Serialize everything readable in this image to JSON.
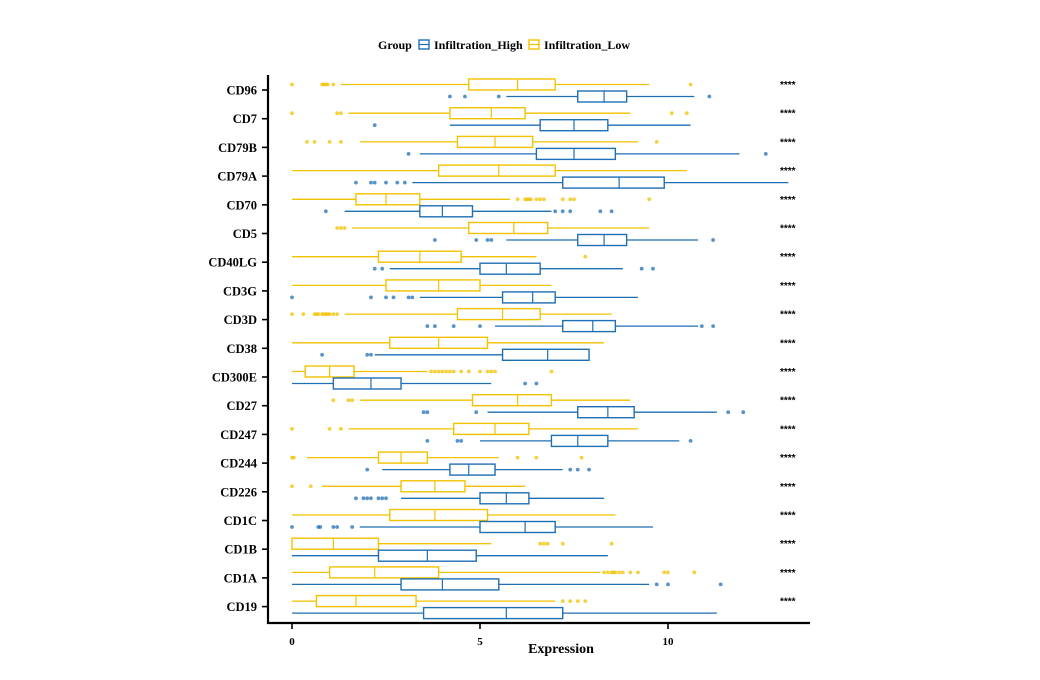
{
  "chart_data": {
    "type": "boxplot",
    "orientation": "horizontal",
    "xlabel": "Expression",
    "xlim": [
      -1.2,
      13.8
    ],
    "xticks": [
      0,
      5,
      10
    ],
    "legend": {
      "title": "Group",
      "position": "top",
      "entries": [
        {
          "name": "Infiltration_High",
          "color": "#1f6fb5"
        },
        {
          "name": "Infiltration_Low",
          "color": "#f2c200"
        }
      ]
    },
    "categories": [
      "CD96",
      "CD7",
      "CD79B",
      "CD79A",
      "CD70",
      "CD5",
      "CD40LG",
      "CD3G",
      "CD3D",
      "CD38",
      "CD300E",
      "CD27",
      "CD247",
      "CD244",
      "CD226",
      "CD1C",
      "CD1B",
      "CD1A",
      "CD19"
    ],
    "significance": [
      "****",
      "****",
      "****",
      "****",
      "****",
      "****",
      "****",
      "****",
      "****",
      "****",
      "****",
      "****",
      "****",
      "****",
      "****",
      "****",
      "****",
      "****",
      "****"
    ],
    "series": [
      {
        "name": "Infiltration_Low",
        "color": "#f2c200",
        "boxes": [
          {
            "min": 1.3,
            "q1": 4.7,
            "median": 6.0,
            "q3": 7.0,
            "max": 9.5,
            "outliers": [
              0.0,
              0.8,
              0.85,
              0.9,
              0.95,
              1.1,
              10.6
            ]
          },
          {
            "min": 1.5,
            "q1": 4.2,
            "median": 5.3,
            "q3": 6.2,
            "max": 9.0,
            "outliers": [
              0.0,
              1.2,
              1.3,
              10.1,
              10.5
            ]
          },
          {
            "min": 1.8,
            "q1": 4.4,
            "median": 5.4,
            "q3": 6.4,
            "max": 9.2,
            "outliers": [
              0.4,
              0.6,
              1.0,
              1.3,
              9.7
            ]
          },
          {
            "min": 0.0,
            "q1": 3.9,
            "median": 5.5,
            "q3": 7.0,
            "max": 10.5,
            "outliers": []
          },
          {
            "min": 0.0,
            "q1": 1.7,
            "median": 2.5,
            "q3": 3.4,
            "max": 5.8,
            "outliers": [
              6.0,
              6.2,
              6.25,
              6.3,
              6.35,
              6.5,
              6.6,
              6.7,
              7.2,
              7.4,
              7.5,
              9.5
            ]
          },
          {
            "min": 1.6,
            "q1": 4.7,
            "median": 5.9,
            "q3": 6.8,
            "max": 9.5,
            "outliers": [
              1.2,
              1.3,
              1.4
            ]
          },
          {
            "min": 0.0,
            "q1": 2.3,
            "median": 3.4,
            "q3": 4.5,
            "max": 6.5,
            "outliers": [
              7.8
            ]
          },
          {
            "min": 0.0,
            "q1": 2.5,
            "median": 3.9,
            "q3": 5.0,
            "max": 6.9,
            "outliers": []
          },
          {
            "min": 1.4,
            "q1": 4.4,
            "median": 5.6,
            "q3": 6.6,
            "max": 8.5,
            "outliers": [
              0.0,
              0.3,
              0.6,
              0.65,
              0.7,
              0.8,
              0.85,
              0.9,
              0.95,
              1.0,
              1.1,
              1.2
            ]
          },
          {
            "min": 0.0,
            "q1": 2.6,
            "median": 3.9,
            "q3": 5.2,
            "max": 8.3,
            "outliers": []
          },
          {
            "min": 0.0,
            "q1": 0.35,
            "median": 1.0,
            "q3": 1.65,
            "max": 3.6,
            "outliers": [
              3.7,
              3.8,
              3.9,
              4.0,
              4.1,
              4.2,
              4.3,
              4.5,
              4.7,
              5.0,
              5.2,
              5.3,
              5.4,
              6.9
            ]
          },
          {
            "min": 1.8,
            "q1": 4.8,
            "median": 6.0,
            "q3": 6.9,
            "max": 9.0,
            "outliers": [
              1.1,
              1.5,
              1.6
            ]
          },
          {
            "min": 1.5,
            "q1": 4.3,
            "median": 5.4,
            "q3": 6.3,
            "max": 9.2,
            "outliers": [
              0.0,
              1.0,
              1.3
            ]
          },
          {
            "min": 0.4,
            "q1": 2.3,
            "median": 2.9,
            "q3": 3.6,
            "max": 5.5,
            "outliers": [
              0.0,
              0.05,
              6.0,
              6.5,
              7.7
            ]
          },
          {
            "min": 0.8,
            "q1": 2.9,
            "median": 3.8,
            "q3": 4.6,
            "max": 6.2,
            "outliers": [
              0.0,
              0.5
            ]
          },
          {
            "min": 0.0,
            "q1": 2.6,
            "median": 3.8,
            "q3": 5.2,
            "max": 8.6,
            "outliers": []
          },
          {
            "min": 0.0,
            "q1": 0.0,
            "median": 1.1,
            "q3": 2.3,
            "max": 5.3,
            "outliers": [
              6.6,
              6.7,
              6.8,
              7.2,
              8.5
            ]
          },
          {
            "min": 0.0,
            "q1": 1.0,
            "median": 2.2,
            "q3": 3.9,
            "max": 8.2,
            "outliers": [
              8.3,
              8.4,
              8.5,
              8.55,
              8.6,
              8.7,
              8.8,
              9.0,
              9.2,
              9.9,
              10.0,
              10.7
            ]
          },
          {
            "min": 0.0,
            "q1": 0.65,
            "median": 1.7,
            "q3": 3.3,
            "max": 7.0,
            "outliers": [
              7.2,
              7.4,
              7.6,
              7.8
            ]
          }
        ]
      },
      {
        "name": "Infiltration_High",
        "color": "#1f6fb5",
        "boxes": [
          {
            "min": 5.7,
            "q1": 7.6,
            "median": 8.3,
            "q3": 8.9,
            "max": 10.7,
            "outliers": [
              4.2,
              4.6,
              5.5,
              11.1
            ]
          },
          {
            "min": 4.2,
            "q1": 6.6,
            "median": 7.5,
            "q3": 8.4,
            "max": 10.6,
            "outliers": [
              2.2
            ]
          },
          {
            "min": 3.4,
            "q1": 6.5,
            "median": 7.5,
            "q3": 8.6,
            "max": 11.9,
            "outliers": [
              3.1,
              12.6
            ]
          },
          {
            "min": 3.2,
            "q1": 7.2,
            "median": 8.7,
            "q3": 9.9,
            "max": 13.2,
            "outliers": [
              1.7,
              2.1,
              2.2,
              2.5,
              2.8,
              3.0
            ]
          },
          {
            "min": 1.4,
            "q1": 3.4,
            "median": 4.0,
            "q3": 4.8,
            "max": 6.9,
            "outliers": [
              0.9,
              7.0,
              7.2,
              7.4,
              8.2,
              8.5
            ]
          },
          {
            "min": 5.7,
            "q1": 7.6,
            "median": 8.3,
            "q3": 8.9,
            "max": 10.8,
            "outliers": [
              3.8,
              4.9,
              5.2,
              5.3,
              11.2
            ]
          },
          {
            "min": 2.6,
            "q1": 5.0,
            "median": 5.7,
            "q3": 6.6,
            "max": 8.8,
            "outliers": [
              2.2,
              2.4,
              9.3,
              9.6
            ]
          },
          {
            "min": 3.4,
            "q1": 5.6,
            "median": 6.4,
            "q3": 7.0,
            "max": 9.2,
            "outliers": [
              0.0,
              2.1,
              2.5,
              2.7,
              3.1,
              3.2
            ]
          },
          {
            "min": 5.4,
            "q1": 7.2,
            "median": 8.0,
            "q3": 8.6,
            "max": 10.8,
            "outliers": [
              3.6,
              3.8,
              4.3,
              5.0,
              10.9,
              11.2
            ]
          },
          {
            "min": 2.2,
            "q1": 5.6,
            "median": 6.8,
            "q3": 7.9,
            "max": 7.9,
            "outliers": [
              0.8,
              2.0,
              2.1
            ]
          },
          {
            "min": 0.0,
            "q1": 1.1,
            "median": 2.1,
            "q3": 2.9,
            "max": 5.3,
            "outliers": [
              6.2,
              6.5
            ]
          },
          {
            "min": 5.2,
            "q1": 7.6,
            "median": 8.4,
            "q3": 9.1,
            "max": 11.3,
            "outliers": [
              3.5,
              3.6,
              4.9,
              11.6,
              12.0
            ]
          },
          {
            "min": 5.0,
            "q1": 6.9,
            "median": 7.6,
            "q3": 8.4,
            "max": 10.3,
            "outliers": [
              3.6,
              4.4,
              4.5,
              10.6
            ]
          },
          {
            "min": 2.4,
            "q1": 4.2,
            "median": 4.7,
            "q3": 5.4,
            "max": 7.2,
            "outliers": [
              2.0,
              7.4,
              7.6,
              7.9
            ]
          },
          {
            "min": 2.9,
            "q1": 5.0,
            "median": 5.7,
            "q3": 6.3,
            "max": 8.3,
            "outliers": [
              1.7,
              1.9,
              2.0,
              2.1,
              2.3,
              2.4,
              2.5
            ]
          },
          {
            "min": 1.8,
            "q1": 5.0,
            "median": 6.2,
            "q3": 7.0,
            "max": 9.6,
            "outliers": [
              0.0,
              0.7,
              0.75,
              1.1,
              1.2,
              1.6
            ]
          },
          {
            "min": 0.0,
            "q1": 2.3,
            "median": 3.6,
            "q3": 4.9,
            "max": 8.4,
            "outliers": []
          },
          {
            "min": 0.0,
            "q1": 2.9,
            "median": 4.0,
            "q3": 5.5,
            "max": 9.5,
            "outliers": [
              9.7,
              10.0,
              11.4
            ]
          },
          {
            "min": 0.0,
            "q1": 3.5,
            "median": 5.7,
            "q3": 7.2,
            "max": 11.3,
            "outliers": []
          }
        ]
      }
    ]
  }
}
